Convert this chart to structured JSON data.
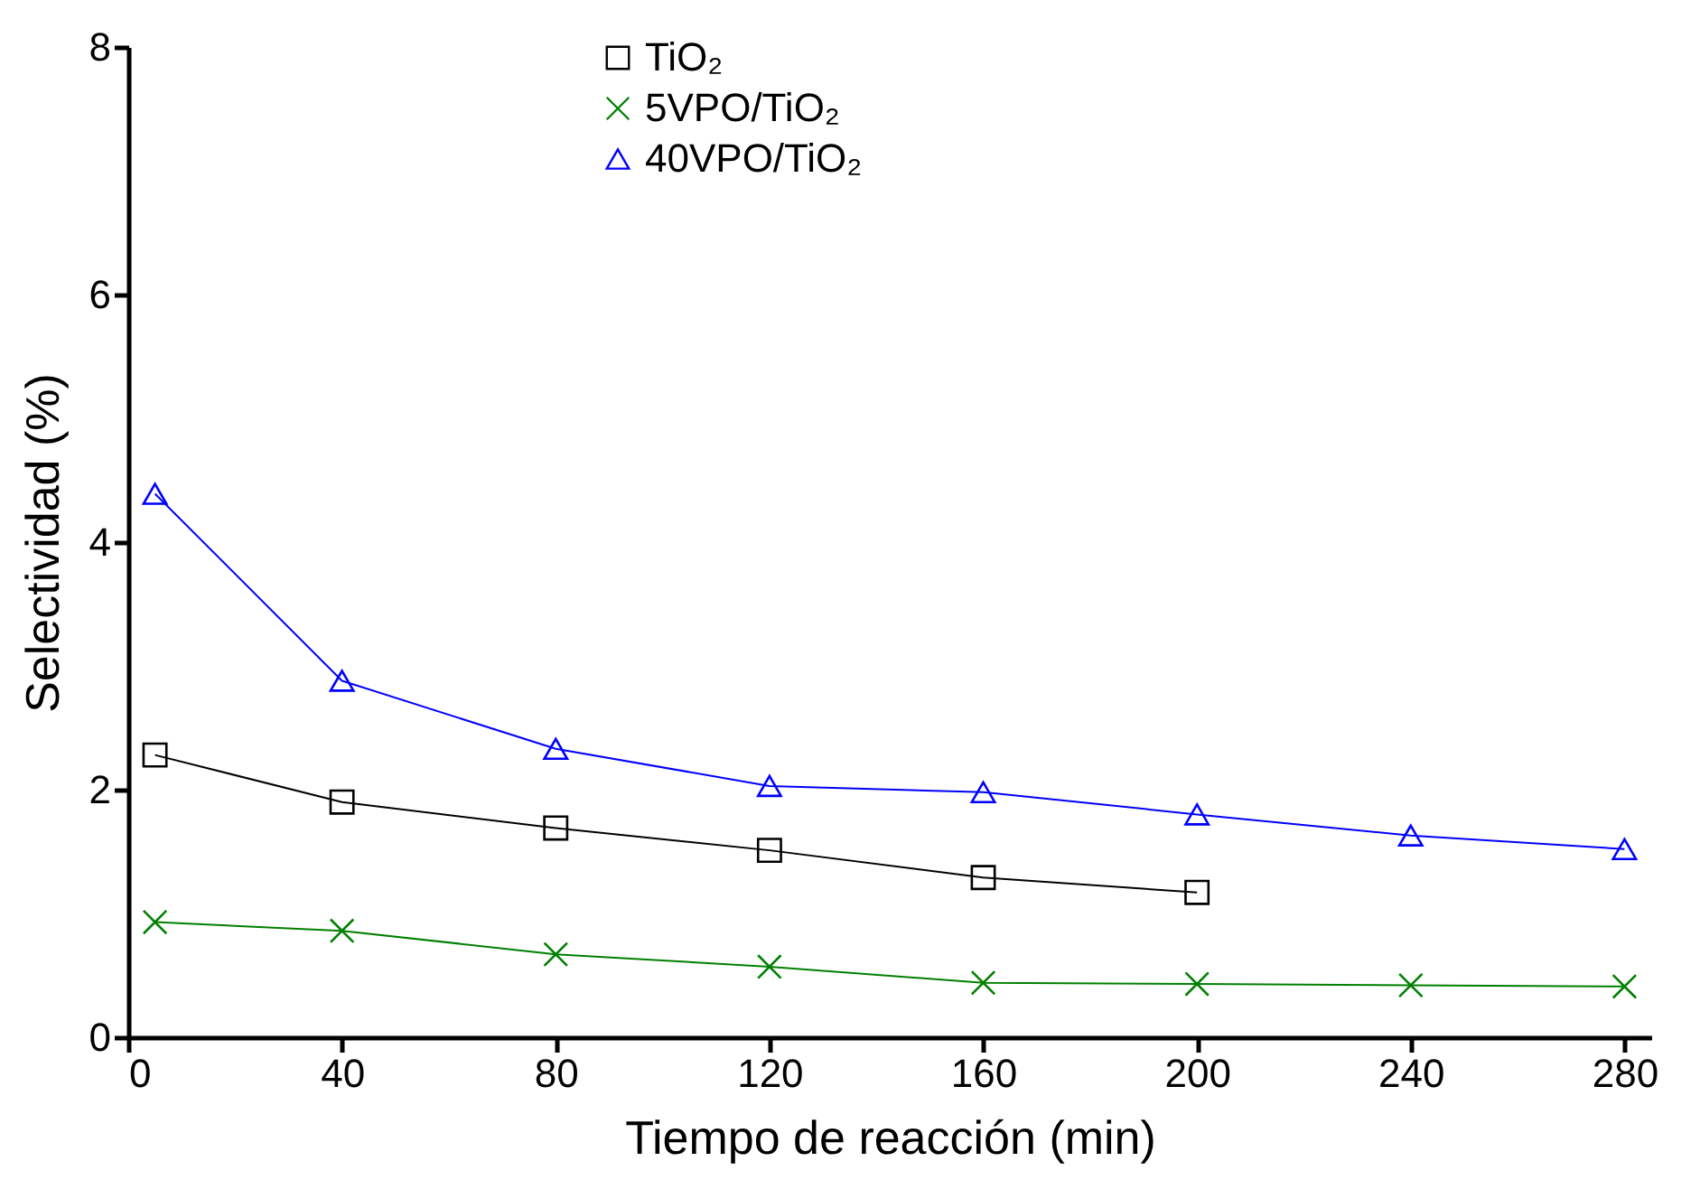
{
  "chart_data": {
    "type": "line",
    "xlabel": "Tiempo de reacción (min)",
    "ylabel": "Selectividad (%)",
    "x": [
      5,
      40,
      80,
      120,
      160,
      200,
      240,
      280
    ],
    "xlim": [
      0,
      285
    ],
    "xticks": [
      0,
      40,
      80,
      120,
      160,
      200,
      240,
      280
    ],
    "ylim": [
      0,
      8
    ],
    "yticks": [
      0,
      2,
      4,
      6,
      8
    ],
    "grid": false,
    "legend": "top",
    "series": [
      {
        "name": "TiO₂",
        "color": "#000000",
        "marker": "square",
        "values": [
          2.28,
          1.9,
          1.69,
          1.51,
          1.29,
          1.17,
          null,
          null
        ]
      },
      {
        "name": "5VPO/TiO₂",
        "color": "#008000",
        "marker": "cross",
        "values": [
          0.93,
          0.86,
          0.67,
          0.57,
          0.44,
          0.43,
          0.42,
          0.41
        ]
      },
      {
        "name": "40VPO/TiO₂",
        "color": "#0000ff",
        "marker": "triangle",
        "values": [
          4.39,
          2.88,
          2.33,
          2.03,
          1.98,
          1.8,
          1.63,
          1.52
        ]
      }
    ]
  }
}
